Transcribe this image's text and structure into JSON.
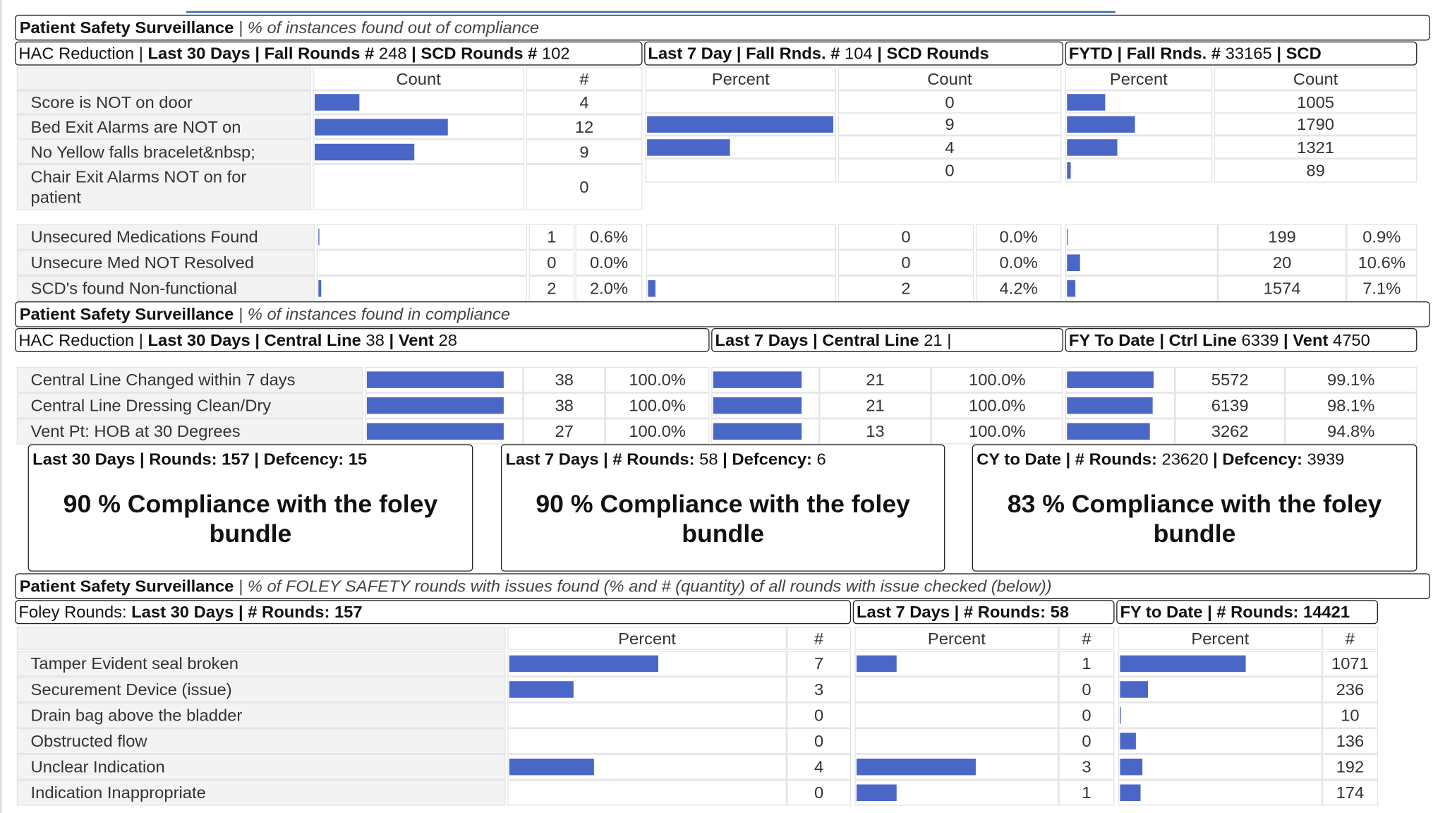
{
  "bar_color": "#4a67c8",
  "out_of_compliance": {
    "header": {
      "title": "Patient Safety Surveillance",
      "subtitle": "| % of instances found out of compliance"
    },
    "periods": [
      [
        {
          "text": "HAC Reduction | ",
          "bold": false
        },
        {
          "text": "Last 30 Days | Fall Rounds # ",
          "bold": true
        },
        {
          "text": "248",
          "bold": false
        },
        {
          "text": " | SCD Rounds # ",
          "bold": true
        },
        {
          "text": "102",
          "bold": false
        }
      ],
      [
        {
          "text": "Last 7 Day | Fall Rnds. # ",
          "bold": true
        },
        {
          "text": "104",
          "bold": false
        },
        {
          "text": " | SCD Rounds",
          "bold": true
        }
      ],
      [
        {
          "text": "FYTD | Fall Rnds. # ",
          "bold": true
        },
        {
          "text": "33165",
          "bold": false
        },
        {
          "text": " | SCD",
          "bold": true
        }
      ]
    ],
    "alarms": {
      "columns": [
        [
          "Count",
          "#"
        ],
        [
          "Percent",
          "Count"
        ],
        [
          "Percent",
          "Count"
        ]
      ],
      "rows": [
        {
          "label": "Score is NOT on door",
          "values": [
            4,
            0,
            1005
          ]
        },
        {
          "label": "Bed Exit Alarms are NOT on",
          "values": [
            12,
            9,
            1790
          ]
        },
        {
          "label": "No Yellow falls bracelet&nbsp;",
          "values": [
            9,
            4,
            1321
          ]
        },
        {
          "label": "Chair Exit Alarms NOT on for patient",
          "values": [
            0,
            0,
            89
          ]
        }
      ]
    },
    "medications": {
      "rows": [
        {
          "label": "Unsecured Medications Found",
          "counts": [
            1,
            0,
            199
          ],
          "percents": [
            0.6,
            0,
            0.9
          ],
          "percent_labels": [
            "0.6%",
            "0.0%",
            "0.9%"
          ]
        },
        {
          "label": "Unsecure Med NOT Resolved",
          "counts": [
            0,
            0,
            20
          ],
          "percents": [
            0,
            0,
            10.6
          ],
          "percent_labels": [
            "0.0%",
            "0.0%",
            "10.6%"
          ]
        },
        {
          "label": "SCD's found Non-functional",
          "counts": [
            2,
            2,
            1574
          ],
          "percents": [
            2.0,
            4.2,
            7.1
          ],
          "percent_labels": [
            "2.0%",
            "4.2%",
            "7.1%"
          ]
        }
      ]
    }
  },
  "in_compliance": {
    "header": {
      "title": "Patient Safety Surveillance",
      "subtitle": "| % of instances found in compliance"
    },
    "periods": [
      [
        {
          "text": "HAC Reduction | ",
          "bold": false
        },
        {
          "text": "Last 30 Days | Central Line ",
          "bold": true
        },
        {
          "text": "38",
          "bold": false
        },
        {
          "text": " | Vent ",
          "bold": true
        },
        {
          "text": "28",
          "bold": false
        }
      ],
      [
        {
          "text": "Last 7 Days | Central Line ",
          "bold": true
        },
        {
          "text": "21",
          "bold": false
        },
        {
          "text": " |",
          "bold": false
        }
      ],
      [
        {
          "text": "FY To Date | Ctrl Line ",
          "bold": true
        },
        {
          "text": "6339",
          "bold": false
        },
        {
          "text": " | Vent ",
          "bold": true
        },
        {
          "text": "4750",
          "bold": false
        }
      ]
    ],
    "lines": {
      "rows": [
        {
          "label": "Central Line Changed within 7 days",
          "counts": [
            38,
            21,
            5572
          ],
          "percents": [
            100,
            100,
            99.1
          ],
          "percent_labels": [
            "100.0%",
            "100.0%",
            "99.1%"
          ]
        },
        {
          "label": "Central Line Dressing Clean/Dry",
          "counts": [
            38,
            21,
            6139
          ],
          "percents": [
            100,
            100,
            98.1
          ],
          "percent_labels": [
            "100.0%",
            "100.0%",
            "98.1%"
          ]
        },
        {
          "label": "Vent Pt: HOB at 30 Degrees",
          "counts": [
            27,
            13,
            3262
          ],
          "percents": [
            100,
            100,
            94.8
          ],
          "percent_labels": [
            "100.0%",
            "100.0%",
            "94.8%"
          ]
        }
      ]
    }
  },
  "foley_bundle": [
    {
      "header": [
        {
          "text": "Last 30 Days | Rounds: 157 | Defcency: 15",
          "bold": true
        }
      ],
      "text": "90 % Compliance with the foley bundle"
    },
    {
      "header": [
        {
          "text": "Last 7 Days | # Rounds: ",
          "bold": true
        },
        {
          "text": "58",
          "bold": false
        },
        {
          "text": " | Defcency: ",
          "bold": true
        },
        {
          "text": "6",
          "bold": false
        }
      ],
      "text": "90 % Compliance with the foley bundle"
    },
    {
      "header": [
        {
          "text": "CY to Date | # Rounds: ",
          "bold": true
        },
        {
          "text": "23620",
          "bold": false
        },
        {
          "text": " | Defcency: ",
          "bold": true
        },
        {
          "text": "3939",
          "bold": false
        }
      ],
      "text": "83 % Compliance with the foley bundle"
    }
  ],
  "foley_safety": {
    "header": {
      "title": "Patient Safety Surveillance",
      "subtitle": "| % of FOLEY SAFETY rounds with issues found (% and # (quantity) of all rounds with issue checked (below))"
    },
    "periods": [
      [
        {
          "text": "Foley Rounds: ",
          "bold": false
        },
        {
          "text": "Last 30 Days | # Rounds: 157",
          "bold": true
        }
      ],
      [
        {
          "text": "Last 7 Days | # Rounds: 58",
          "bold": true
        }
      ],
      [
        {
          "text": "FY to Date | # Rounds: 14421",
          "bold": true
        }
      ]
    ],
    "issues": {
      "columns": [
        [
          "Percent",
          "#"
        ],
        [
          "Percent",
          "#"
        ],
        [
          "Percent",
          "#"
        ]
      ],
      "rows": [
        {
          "label": "Tamper Evident seal broken",
          "values": [
            7,
            1,
            1071
          ]
        },
        {
          "label": "Securement Device (issue)",
          "values": [
            3,
            0,
            236
          ]
        },
        {
          "label": "Drain bag above the bladder",
          "values": [
            0,
            0,
            10
          ]
        },
        {
          "label": "Obstructed flow",
          "values": [
            0,
            0,
            136
          ]
        },
        {
          "label": "Unclear Indication",
          "values": [
            4,
            3,
            192
          ]
        },
        {
          "label": "Indication Inappropriate",
          "values": [
            0,
            1,
            174
          ]
        }
      ]
    }
  }
}
